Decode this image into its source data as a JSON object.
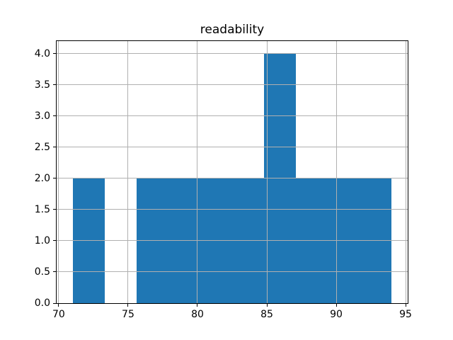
{
  "figure": {
    "background": "#ffffff"
  },
  "chart_data": {
    "type": "bar",
    "subtype": "histogram",
    "title": "readability",
    "xlabel": "",
    "ylabel": "",
    "bin_edges": [
      71.0,
      73.3,
      75.6,
      77.9,
      80.2,
      82.5,
      84.8,
      87.1,
      89.4,
      91.7,
      94.0
    ],
    "counts": [
      2,
      0,
      2,
      2,
      2,
      2,
      4,
      2,
      2,
      2
    ],
    "xlim": [
      69.85,
      95.15
    ],
    "ylim": [
      0,
      4.2
    ],
    "xticks": {
      "values": [
        70,
        75,
        80,
        85,
        90,
        95
      ],
      "labels": [
        "70",
        "75",
        "80",
        "85",
        "90",
        "95"
      ]
    },
    "yticks": {
      "values": [
        0,
        0.5,
        1.0,
        1.5,
        2.0,
        2.5,
        3.0,
        3.5,
        4.0
      ],
      "labels": [
        "0.0",
        "0.5",
        "1.0",
        "1.5",
        "2.0",
        "2.5",
        "3.0",
        "3.5",
        "4.0"
      ]
    },
    "grid": true,
    "grid_over_bars": true,
    "legend": null,
    "colors": {
      "bar": "#1f77b4",
      "grid": "#b0b0b0",
      "axis": "#000000",
      "text": "#000000"
    }
  }
}
